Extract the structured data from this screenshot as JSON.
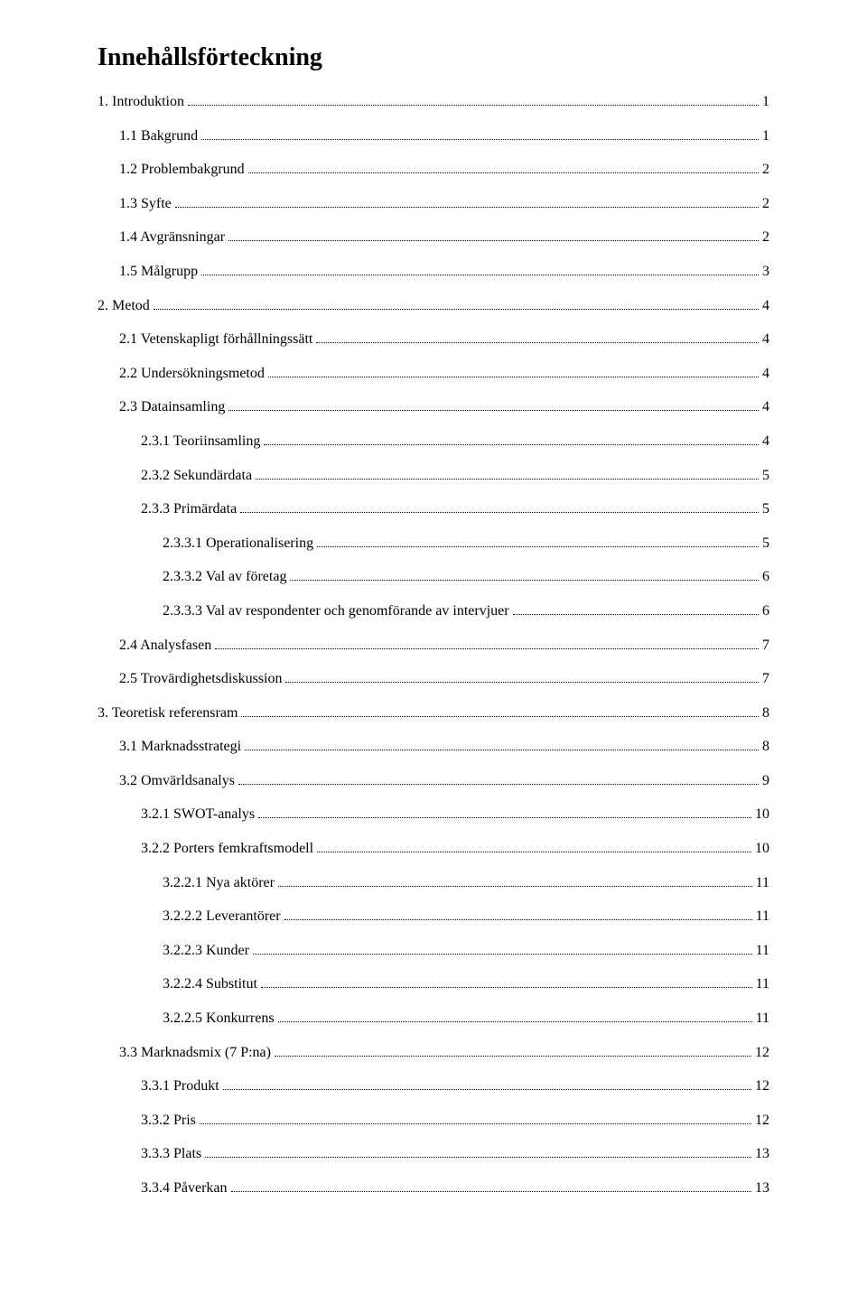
{
  "title": "Innehållsförteckning",
  "entries": [
    {
      "label": "1.    Introduktion",
      "page": "1",
      "indent": 0
    },
    {
      "label": "1.1 Bakgrund",
      "page": "1",
      "indent": 1
    },
    {
      "label": "1.2 Problembakgrund",
      "page": "2",
      "indent": 1
    },
    {
      "label": "1.3 Syfte",
      "page": "2",
      "indent": 1
    },
    {
      "label": "1.4 Avgränsningar",
      "page": "2",
      "indent": 1
    },
    {
      "label": "1.5 Målgrupp",
      "page": "3",
      "indent": 1
    },
    {
      "label": "2.    Metod",
      "page": "4",
      "indent": 0
    },
    {
      "label": "2.1 Vetenskapligt förhållningssätt",
      "page": "4",
      "indent": 1
    },
    {
      "label": "2.2 Undersökningsmetod",
      "page": "4",
      "indent": 1
    },
    {
      "label": "2.3 Datainsamling",
      "page": "4",
      "indent": 1
    },
    {
      "label": "2.3.1 Teoriinsamling",
      "page": "4",
      "indent": 2
    },
    {
      "label": "2.3.2 Sekundärdata",
      "page": "5",
      "indent": 2
    },
    {
      "label": "2.3.3 Primärdata",
      "page": "5",
      "indent": 2
    },
    {
      "label": "2.3.3.1 Operationalisering",
      "page": "5",
      "indent": 3
    },
    {
      "label": "2.3.3.2 Val av företag",
      "page": "6",
      "indent": 3
    },
    {
      "label": "2.3.3.3 Val av respondenter och genomförande av intervjuer",
      "page": "6",
      "indent": 3
    },
    {
      "label": "2.4 Analysfasen",
      "page": "7",
      "indent": 1
    },
    {
      "label": "2.5 Trovärdighetsdiskussion",
      "page": "7",
      "indent": 1
    },
    {
      "label": "3.    Teoretisk referensram",
      "page": "8",
      "indent": 0
    },
    {
      "label": "3.1 Marknadsstrategi",
      "page": "8",
      "indent": 1
    },
    {
      "label": "3.2 Omvärldsanalys",
      "page": "9",
      "indent": 1
    },
    {
      "label": "3.2.1 SWOT-analys",
      "page": "10",
      "indent": 2
    },
    {
      "label": "3.2.2 Porters femkraftsmodell",
      "page": "10",
      "indent": 2
    },
    {
      "label": "3.2.2.1 Nya aktörer",
      "page": "11",
      "indent": 3
    },
    {
      "label": "3.2.2.2 Leverantörer",
      "page": "11",
      "indent": 3
    },
    {
      "label": "3.2.2.3 Kunder",
      "page": "11",
      "indent": 3
    },
    {
      "label": "3.2.2.4 Substitut",
      "page": "11",
      "indent": 3
    },
    {
      "label": "3.2.2.5 Konkurrens",
      "page": "11",
      "indent": 3
    },
    {
      "label": "3.3 Marknadsmix (7 P:na)",
      "page": "12",
      "indent": 1
    },
    {
      "label": "3.3.1 Produkt",
      "page": "12",
      "indent": 2
    },
    {
      "label": "3.3.2 Pris",
      "page": "12",
      "indent": 2
    },
    {
      "label": "3.3.3 Plats",
      "page": "13",
      "indent": 2
    },
    {
      "label": "3.3.4 Påverkan",
      "page": "13",
      "indent": 2
    }
  ]
}
